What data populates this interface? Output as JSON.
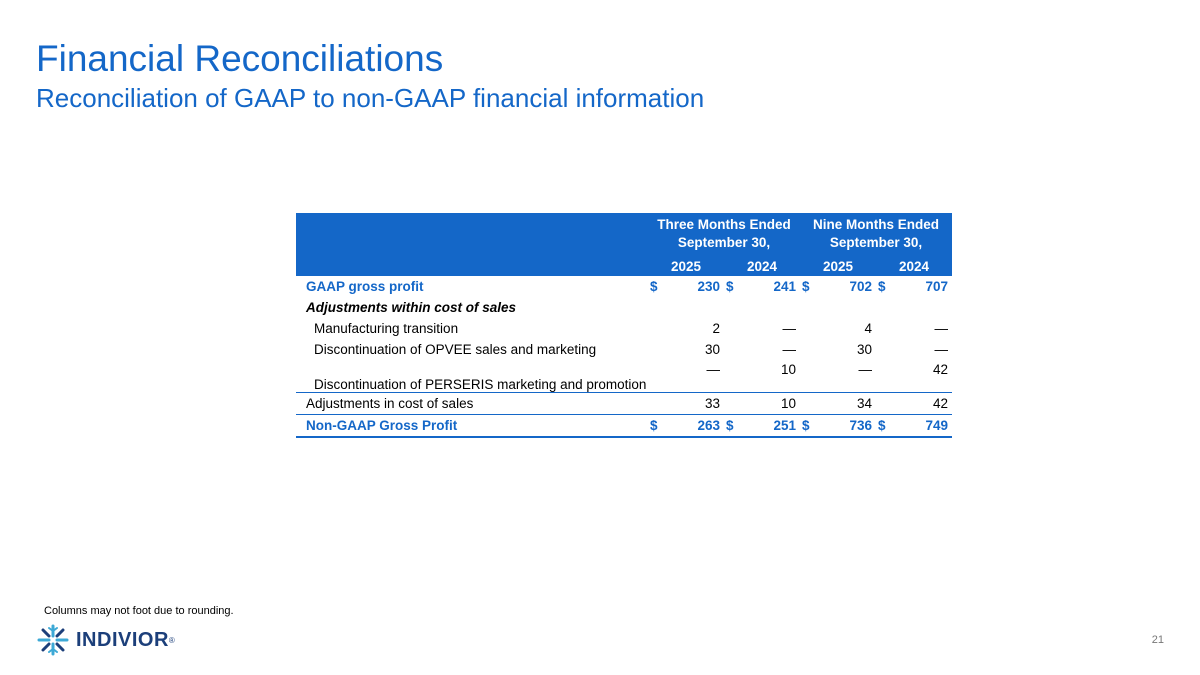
{
  "header": {
    "title": "Financial Reconciliations",
    "subtitle": "Reconciliation of GAAP to non-GAAP financial information"
  },
  "table": {
    "group1_line1": "Three Months Ended",
    "group1_line2": "September 30,",
    "group2_line1": "Nine Months Ended",
    "group2_line2": "September 30,",
    "years": [
      "2025",
      "2024",
      "2025",
      "2024"
    ],
    "currency_symbol": "$",
    "rows": {
      "gaap_gross_profit": {
        "label": "GAAP gross profit",
        "values": [
          "230",
          "241",
          "702",
          "707"
        ]
      },
      "adjustments_header": {
        "label": "Adjustments within cost of sales"
      },
      "manufacturing_transition": {
        "label": "Manufacturing transition",
        "values": [
          "2",
          "—",
          "4",
          "—"
        ]
      },
      "opvee": {
        "label": "Discontinuation of OPVEE sales and marketing",
        "values": [
          "30",
          "—",
          "30",
          "—"
        ]
      },
      "perseris": {
        "label": "Discontinuation of PERSERIS marketing and promotion",
        "values": [
          "—",
          "10",
          "—",
          "42"
        ]
      },
      "adjustments_total": {
        "label": "Adjustments in cost of sales",
        "values": [
          "33",
          "10",
          "34",
          "42"
        ]
      },
      "non_gaap_gross_profit": {
        "label": "Non-GAAP Gross Profit",
        "values": [
          "263",
          "251",
          "736",
          "749"
        ]
      }
    }
  },
  "footnote": "Columns may not foot due to rounding.",
  "page_number": "21",
  "logo": {
    "text": "INDIVIOR",
    "registered": "®"
  },
  "colors": {
    "accent": "#1467c8",
    "logo_dark": "#1c3f7a"
  },
  "icons": {
    "logo": "indivior-snowflake-icon"
  }
}
